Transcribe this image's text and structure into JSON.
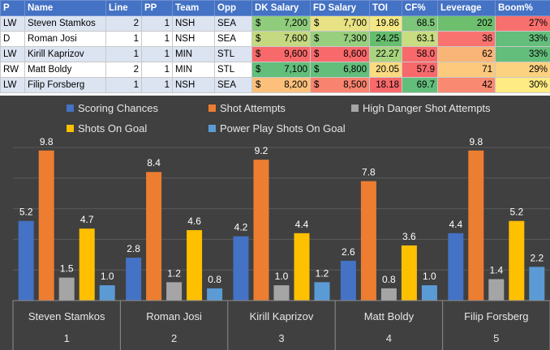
{
  "table": {
    "headers": [
      "P",
      "Name",
      "Line",
      "PP",
      "Team",
      "Opp",
      "DK Salary",
      "FD Salary",
      "TOI",
      "CF%",
      "Leverage",
      "Boom%"
    ],
    "currency_symbol": "$",
    "rows": [
      {
        "pos": "LW",
        "name": "Steven Stamkos",
        "line": "2",
        "pp": "1",
        "team": "NSH",
        "opp": "SEA",
        "dk": "7,200",
        "fd": "7,700",
        "toi": "19.86",
        "cf": "68.5",
        "lev": "202",
        "boom": "27%",
        "dk_color": "#8fcc7c",
        "fd_color": "#e7e284",
        "toi_color": "#f3e885",
        "cf_color": "#7cc57a",
        "lev_color": "#6dbf6e",
        "boom_color": "#f8706e"
      },
      {
        "pos": "D",
        "name": "Roman Josi",
        "line": "1",
        "pp": "1",
        "team": "NSH",
        "opp": "SEA",
        "dk": "7,600",
        "fd": "7,300",
        "toi": "24.25",
        "cf": "63.1",
        "lev": "36",
        "boom": "33%",
        "dk_color": "#c5d980",
        "fd_color": "#98cf7e",
        "toi_color": "#66bd6d",
        "cf_color": "#c8dc81",
        "lev_color": "#f8736f",
        "boom_color": "#63be7b"
      },
      {
        "pos": "LW",
        "name": "Kirill Kaprizov",
        "line": "1",
        "pp": "1",
        "team": "MIN",
        "opp": "STL",
        "dk": "9,600",
        "fd": "8,600",
        "toi": "22.27",
        "cf": "58.0",
        "lev": "62",
        "boom": "33%",
        "dk_color": "#f8696b",
        "fd_color": "#f8696b",
        "toi_color": "#a9d37f",
        "cf_color": "#f8696b",
        "lev_color": "#f9b577",
        "boom_color": "#63be7b"
      },
      {
        "pos": "RW",
        "name": "Matt Boldy",
        "line": "2",
        "pp": "1",
        "team": "MIN",
        "opp": "STL",
        "dk": "7,100",
        "fd": "6,800",
        "toi": "20.05",
        "cf": "57.9",
        "lev": "71",
        "boom": "29%",
        "dk_color": "#63be7b",
        "fd_color": "#63be7b",
        "toi_color": "#fbdb81",
        "cf_color": "#f8696b",
        "lev_color": "#fcc97d",
        "boom_color": "#fcd17f"
      },
      {
        "pos": "LW",
        "name": "Filip Forsberg",
        "line": "1",
        "pp": "1",
        "team": "NSH",
        "opp": "SEA",
        "dk": "8,200",
        "fd": "8,500",
        "toi": "18.18",
        "cf": "69.7",
        "lev": "42",
        "boom": "30%",
        "dk_color": "#fcc07b",
        "fd_color": "#f8836e",
        "toi_color": "#f8696b",
        "cf_color": "#63be7b",
        "lev_color": "#f98a71",
        "boom_color": "#ffeb84"
      }
    ]
  },
  "chart_data": {
    "type": "bar",
    "categories": [
      {
        "name": "Steven Stamkos",
        "index": "1"
      },
      {
        "name": "Roman Josi",
        "index": "2"
      },
      {
        "name": "Kirill Kaprizov",
        "index": "3"
      },
      {
        "name": "Matt Boldy",
        "index": "4"
      },
      {
        "name": "Filip Forsberg",
        "index": "5"
      }
    ],
    "series": [
      {
        "name": "Scoring Chances",
        "color": "#4472c4",
        "values": [
          5.2,
          2.8,
          4.2,
          2.6,
          4.4
        ],
        "labels": [
          "5.2",
          "2.8",
          "4.2",
          "2.6",
          "4.4"
        ]
      },
      {
        "name": "Shot Attempts",
        "color": "#ed7d31",
        "values": [
          9.8,
          8.4,
          9.2,
          7.8,
          9.8
        ],
        "labels": [
          "9.8",
          "8.4",
          "9.2",
          "7.8",
          "9.8"
        ]
      },
      {
        "name": "High Danger Shot Attempts",
        "color": "#a5a5a5",
        "values": [
          1.5,
          1.2,
          1.0,
          0.8,
          1.4
        ],
        "labels": [
          "1.5",
          "1.2",
          "1.0",
          "0.8",
          "1.4"
        ]
      },
      {
        "name": "Shots On Goal",
        "color": "#ffc000",
        "values": [
          4.7,
          4.6,
          4.4,
          3.6,
          5.2
        ],
        "labels": [
          "4.7",
          "4.6",
          "4.4",
          "3.6",
          "5.2"
        ]
      },
      {
        "name": "Power Play Shots On Goal",
        "color": "#5b9bd5",
        "values": [
          1.0,
          0.8,
          1.2,
          1.0,
          2.2
        ],
        "labels": [
          "1.0",
          "0.8",
          "1.2",
          "1.0",
          "2.2"
        ]
      }
    ],
    "title": "",
    "xlabel": "",
    "ylabel": "",
    "ylim": [
      0,
      10
    ],
    "grid": true,
    "legend": "top"
  }
}
